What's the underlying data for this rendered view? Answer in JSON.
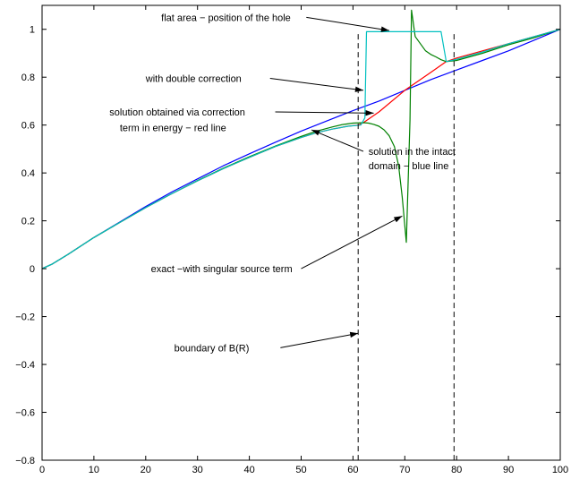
{
  "chart_data": {
    "type": "line",
    "title": "",
    "xlabel": "",
    "ylabel": "",
    "xlim": [
      0,
      100
    ],
    "ylim": [
      -0.8,
      1.1
    ],
    "xticks": [
      0,
      10,
      20,
      30,
      40,
      50,
      60,
      70,
      80,
      90,
      100
    ],
    "yticks": [
      -0.8,
      -0.6,
      -0.4,
      -0.2,
      0,
      0.2,
      0.4,
      0.6,
      0.8,
      1
    ],
    "grid": false,
    "series": [
      {
        "name": "blue line",
        "color": "#0000ff",
        "points": [
          [
            0,
            0
          ],
          [
            2,
            0.02
          ],
          [
            5,
            0.06
          ],
          [
            10,
            0.13
          ],
          [
            15,
            0.195
          ],
          [
            20,
            0.26
          ],
          [
            25,
            0.32
          ],
          [
            30,
            0.375
          ],
          [
            35,
            0.43
          ],
          [
            40,
            0.48
          ],
          [
            45,
            0.528
          ],
          [
            50,
            0.575
          ],
          [
            55,
            0.618
          ],
          [
            60,
            0.66
          ],
          [
            65,
            0.7
          ],
          [
            70,
            0.745
          ],
          [
            75,
            0.79
          ],
          [
            80,
            0.83
          ],
          [
            85,
            0.87
          ],
          [
            90,
            0.91
          ],
          [
            95,
            0.955
          ],
          [
            100,
            1.0
          ]
        ]
      },
      {
        "name": "red line",
        "color": "#ff0000",
        "points": [
          [
            0,
            0
          ],
          [
            2,
            0.02
          ],
          [
            5,
            0.06
          ],
          [
            10,
            0.13
          ],
          [
            15,
            0.193
          ],
          [
            20,
            0.255
          ],
          [
            25,
            0.313
          ],
          [
            30,
            0.367
          ],
          [
            35,
            0.418
          ],
          [
            40,
            0.465
          ],
          [
            45,
            0.51
          ],
          [
            50,
            0.548
          ],
          [
            53,
            0.568
          ],
          [
            56,
            0.583
          ],
          [
            59,
            0.595
          ],
          [
            61,
            0.6
          ],
          [
            62,
            0.61
          ],
          [
            65,
            0.655
          ],
          [
            70,
            0.745
          ],
          [
            75,
            0.82
          ],
          [
            78,
            0.865
          ],
          [
            80,
            0.88
          ],
          [
            85,
            0.91
          ],
          [
            90,
            0.94
          ],
          [
            95,
            0.97
          ],
          [
            100,
            1.0
          ]
        ]
      },
      {
        "name": "green line",
        "color": "#008000",
        "points": [
          [
            0,
            0
          ],
          [
            2,
            0.02
          ],
          [
            5,
            0.06
          ],
          [
            10,
            0.13
          ],
          [
            15,
            0.193
          ],
          [
            20,
            0.255
          ],
          [
            25,
            0.313
          ],
          [
            30,
            0.368
          ],
          [
            35,
            0.42
          ],
          [
            40,
            0.468
          ],
          [
            45,
            0.512
          ],
          [
            50,
            0.553
          ],
          [
            53,
            0.575
          ],
          [
            56,
            0.592
          ],
          [
            58,
            0.602
          ],
          [
            60,
            0.608
          ],
          [
            62,
            0.61
          ],
          [
            63,
            0.608
          ],
          [
            64,
            0.603
          ],
          [
            65,
            0.595
          ],
          [
            66,
            0.58
          ],
          [
            67,
            0.555
          ],
          [
            68,
            0.51
          ],
          [
            68.8,
            0.43
          ],
          [
            69.5,
            0.3
          ],
          [
            70.3,
            0.11
          ],
          [
            71,
            0.62
          ],
          [
            71.3,
            1.08
          ],
          [
            72,
            0.97
          ],
          [
            73,
            0.94
          ],
          [
            74,
            0.91
          ],
          [
            75,
            0.895
          ],
          [
            76,
            0.885
          ],
          [
            77,
            0.873
          ],
          [
            78,
            0.865
          ],
          [
            80,
            0.87
          ],
          [
            85,
            0.9
          ],
          [
            90,
            0.935
          ],
          [
            95,
            0.965
          ],
          [
            100,
            1.0
          ]
        ]
      },
      {
        "name": "cyan line",
        "color": "#00c0c0",
        "points": [
          [
            0,
            0
          ],
          [
            2,
            0.02
          ],
          [
            5,
            0.06
          ],
          [
            10,
            0.13
          ],
          [
            15,
            0.193
          ],
          [
            20,
            0.255
          ],
          [
            25,
            0.313
          ],
          [
            30,
            0.367
          ],
          [
            35,
            0.418
          ],
          [
            40,
            0.465
          ],
          [
            45,
            0.51
          ],
          [
            50,
            0.548
          ],
          [
            53,
            0.568
          ],
          [
            56,
            0.583
          ],
          [
            59,
            0.595
          ],
          [
            61.5,
            0.6
          ],
          [
            62.3,
            0.63
          ],
          [
            62.6,
            0.99
          ],
          [
            77,
            0.99
          ],
          [
            78,
            0.865
          ],
          [
            80,
            0.875
          ],
          [
            85,
            0.905
          ],
          [
            90,
            0.94
          ],
          [
            95,
            0.97
          ],
          [
            100,
            1.0
          ]
        ]
      }
    ],
    "vertical_lines": [
      61,
      79.5
    ],
    "annotations": [
      {
        "text": "flat area − position of the hole",
        "tx": 23,
        "ty": 1.05,
        "ax": 67,
        "ay": 0.995,
        "fromX": 51
      },
      {
        "text": "with double correction",
        "tx": 20,
        "ty": 0.795,
        "ax": 62,
        "ay": 0.745,
        "fromX": 44
      },
      {
        "text": "solution obtained via correction",
        "tx": 13,
        "ty": 0.655,
        "ax": 64,
        "ay": 0.65,
        "fromX": 45
      },
      {
        "text": "term in energy − red line",
        "tx": 15,
        "ty": 0.59,
        "ax": null,
        "ay": null,
        "fromX": null
      },
      {
        "text": "solution in the intact",
        "tx": 63,
        "ty": 0.49,
        "ax": 52,
        "ay": 0.58,
        "fromX": 62
      },
      {
        "text": "domain − blue line",
        "tx": 63,
        "ty": 0.43,
        "ax": null,
        "ay": null,
        "fromX": null
      },
      {
        "text": "exact −with singular source term",
        "tx": 21,
        "ty": 0.0,
        "ax": 69.5,
        "ay": 0.22,
        "fromX": 50
      },
      {
        "text": "boundary of B(R)",
        "tx": 25.5,
        "ty": -0.33,
        "ax": 61,
        "ay": -0.27,
        "fromX": 46
      }
    ]
  }
}
